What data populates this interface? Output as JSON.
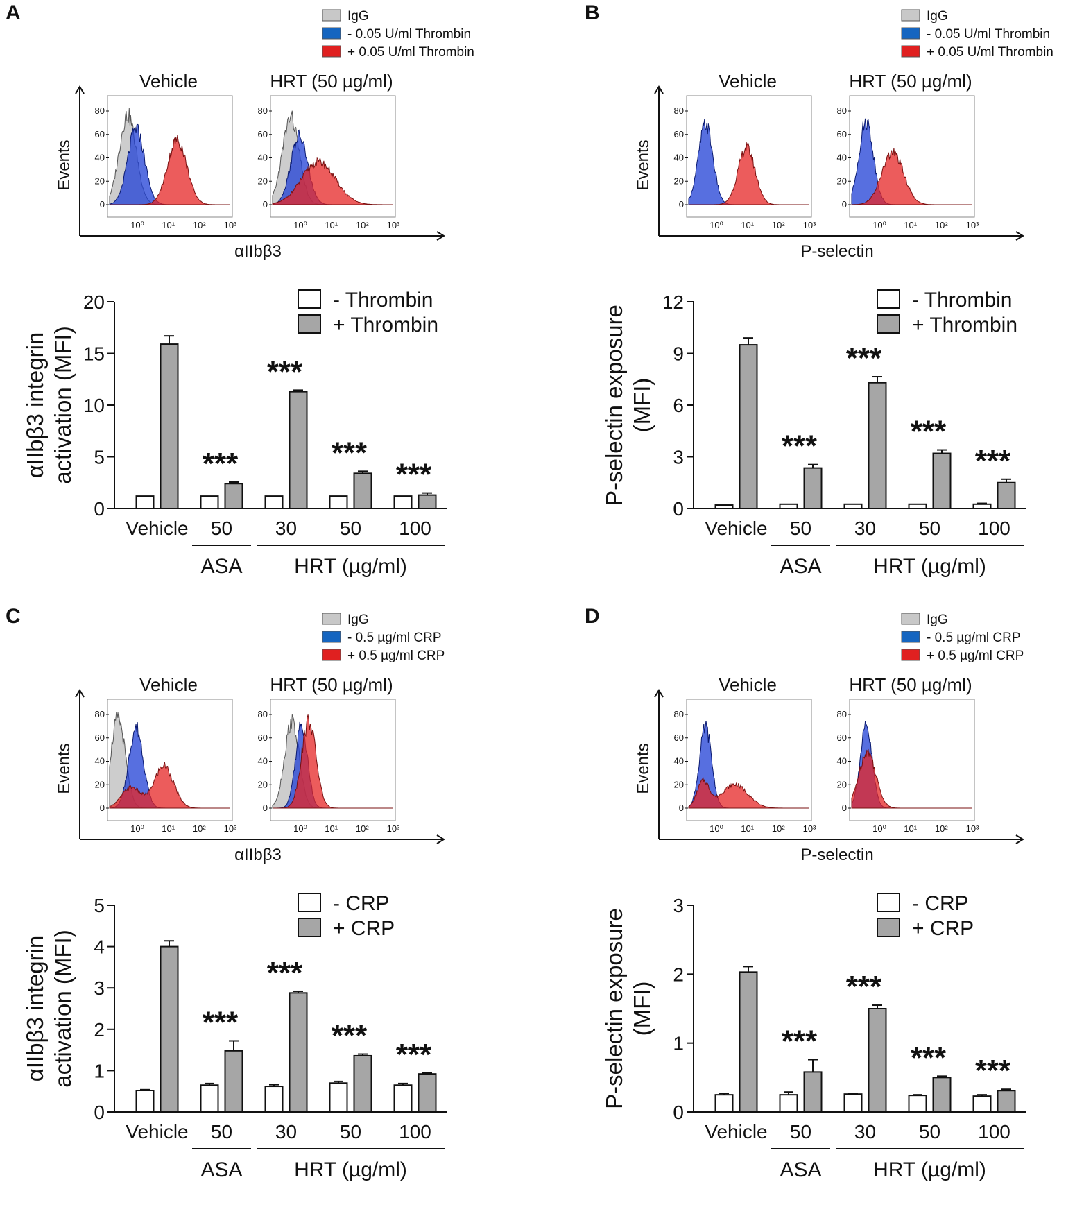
{
  "panels": [
    {
      "letter": "A",
      "histogram": {
        "legend": [
          {
            "label": "IgG",
            "color": "#c8c8c8"
          },
          {
            "label": "- 0.05 U/ml Thrombin",
            "color": "#1565c0"
          },
          {
            "label": "+ 0.05 U/ml Thrombin",
            "color": "#e02020"
          }
        ],
        "plots": [
          {
            "title": "Vehicle",
            "y_ticks": [
              "80",
              "60",
              "40",
              "20",
              "0"
            ],
            "x_ticks": [
              "10⁰",
              "10¹",
              "10²",
              "10³"
            ],
            "peaks": [
              {
                "series": "IgG",
                "center": 0.15,
                "width": 0.07,
                "height": 0.95
              },
              {
                "series": "minus",
                "center": 0.22,
                "width": 0.07,
                "height": 0.8
              },
              {
                "series": "plus",
                "center": 0.56,
                "width": 0.08,
                "height": 0.68
              }
            ]
          },
          {
            "title": "HRT (50 µg/ml)",
            "y_ticks": [
              "80",
              "60",
              "40",
              "20",
              "0"
            ],
            "x_ticks": [
              "10⁰",
              "10¹",
              "10²",
              "10³"
            ],
            "peaks": [
              {
                "series": "IgG",
                "center": 0.15,
                "width": 0.07,
                "height": 0.92
              },
              {
                "series": "minus",
                "center": 0.22,
                "width": 0.07,
                "height": 0.72
              },
              {
                "series": "plus",
                "center": 0.38,
                "width": 0.14,
                "height": 0.45
              }
            ]
          }
        ],
        "y_label": "Events",
        "x_label": "αIIbβ3"
      },
      "bar_chart": {
        "type": "bar",
        "y_label_lines": [
          "αIIbβ3 integrin",
          "activation (MFI)"
        ],
        "ylim": [
          0,
          20
        ],
        "y_ticks": [
          0,
          5,
          10,
          15,
          20
        ],
        "categories": [
          "Vehicle",
          "50",
          "30",
          "50",
          "100"
        ],
        "series": [
          {
            "name": "- Thrombin",
            "values": [
              1.2,
              1.2,
              1.2,
              1.2,
              1.2
            ],
            "errors": [
              0,
              0,
              0,
              0,
              0
            ]
          },
          {
            "name": "+ Thrombin",
            "values": [
              15.9,
              2.4,
              11.3,
              3.4,
              1.3
            ],
            "errors": [
              0.8,
              0.15,
              0.15,
              0.2,
              0.2
            ]
          }
        ],
        "significance": [
          "",
          "***",
          "***",
          "***",
          "***"
        ],
        "groups": [
          {
            "label": "ASA",
            "start": 1,
            "end": 1
          },
          {
            "label": "HRT (µg/ml)",
            "start": 2,
            "end": 4
          }
        ]
      }
    },
    {
      "letter": "B",
      "histogram": {
        "legend": [
          {
            "label": "IgG",
            "color": "#c8c8c8"
          },
          {
            "label": "- 0.05 U/ml Thrombin",
            "color": "#1565c0"
          },
          {
            "label": "+ 0.05 U/ml Thrombin",
            "color": "#e02020"
          }
        ],
        "plots": [
          {
            "title": "Vehicle",
            "y_ticks": [
              "80",
              "60",
              "40",
              "20",
              "0"
            ],
            "x_ticks": [
              "10⁰",
              "10¹",
              "10²",
              "10³"
            ],
            "peaks": [
              {
                "series": "minus",
                "center": 0.14,
                "width": 0.06,
                "height": 0.85
              },
              {
                "series": "plus",
                "center": 0.48,
                "width": 0.07,
                "height": 0.6
              }
            ]
          },
          {
            "title": "HRT (50 µg/ml)",
            "y_ticks": [
              "80",
              "60",
              "40",
              "20",
              "0"
            ],
            "x_ticks": [
              "10⁰",
              "10¹",
              "10²",
              "10³"
            ],
            "peaks": [
              {
                "series": "minus",
                "center": 0.12,
                "width": 0.06,
                "height": 0.88
              },
              {
                "series": "plus",
                "center": 0.34,
                "width": 0.09,
                "height": 0.55
              }
            ]
          }
        ],
        "y_label": "Events",
        "x_label": "P-selectin"
      },
      "bar_chart": {
        "type": "bar",
        "y_label_lines": [
          "P-selectin exposure",
          "(MFI)"
        ],
        "ylim": [
          0,
          12
        ],
        "y_ticks": [
          0,
          3,
          6,
          9,
          12
        ],
        "categories": [
          "Vehicle",
          "50",
          "30",
          "50",
          "100"
        ],
        "series": [
          {
            "name": "- Thrombin",
            "values": [
              0.2,
              0.25,
              0.25,
              0.25,
              0.25
            ],
            "errors": [
              0,
              0,
              0,
              0,
              0.05
            ]
          },
          {
            "name": "+ Thrombin",
            "values": [
              9.5,
              2.35,
              7.3,
              3.2,
              1.5
            ],
            "errors": [
              0.4,
              0.2,
              0.35,
              0.2,
              0.2
            ]
          }
        ],
        "significance": [
          "",
          "***",
          "***",
          "***",
          "***"
        ],
        "groups": [
          {
            "label": "ASA",
            "start": 1,
            "end": 1
          },
          {
            "label": "HRT (µg/ml)",
            "start": 2,
            "end": 4
          }
        ]
      }
    },
    {
      "letter": "C",
      "histogram": {
        "legend": [
          {
            "label": "IgG",
            "color": "#c8c8c8"
          },
          {
            "label": "- 0.5 µg/ml CRP",
            "color": "#1565c0"
          },
          {
            "label": "+ 0.5 µg/ml CRP",
            "color": "#e02020"
          }
        ],
        "plots": [
          {
            "title": "Vehicle",
            "y_ticks": [
              "80",
              "60",
              "40",
              "20",
              "0"
            ],
            "x_ticks": [
              "10⁰",
              "10¹",
              "10²",
              "10³"
            ],
            "peaks": [
              {
                "series": "IgG",
                "center": 0.07,
                "width": 0.06,
                "height": 0.95
              },
              {
                "series": "minus",
                "center": 0.22,
                "width": 0.06,
                "height": 0.85
              },
              {
                "series": "plus",
                "center": 0.45,
                "width": 0.08,
                "height": 0.45
              },
              {
                "series": "plus",
                "center": 0.18,
                "width": 0.08,
                "height": 0.22
              }
            ]
          },
          {
            "title": "HRT (50 µg/ml)",
            "y_ticks": [
              "80",
              "60",
              "40",
              "20",
              "0"
            ],
            "x_ticks": [
              "10⁰",
              "10¹",
              "10²",
              "10³"
            ],
            "peaks": [
              {
                "series": "IgG",
                "center": 0.16,
                "width": 0.06,
                "height": 0.92
              },
              {
                "series": "minus",
                "center": 0.24,
                "width": 0.05,
                "height": 0.88
              },
              {
                "series": "plus",
                "center": 0.3,
                "width": 0.06,
                "height": 0.92
              }
            ]
          }
        ],
        "y_label": "Events",
        "x_label": "αIIbβ3"
      },
      "bar_chart": {
        "type": "bar",
        "y_label_lines": [
          "αIIbβ3 integrin",
          "activation (MFI)"
        ],
        "ylim": [
          0,
          5
        ],
        "y_ticks": [
          0,
          1,
          2,
          3,
          4,
          5
        ],
        "categories": [
          "Vehicle",
          "50",
          "30",
          "50",
          "100"
        ],
        "series": [
          {
            "name": "- CRP",
            "values": [
              0.52,
              0.65,
              0.62,
              0.7,
              0.65
            ],
            "errors": [
              0.02,
              0.04,
              0.04,
              0.04,
              0.04
            ]
          },
          {
            "name": "+ CRP",
            "values": [
              4.0,
              1.48,
              2.88,
              1.36,
              0.92
            ],
            "errors": [
              0.14,
              0.24,
              0.04,
              0.04,
              0.02
            ]
          }
        ],
        "significance": [
          "",
          "***",
          "***",
          "***",
          "***"
        ],
        "groups": [
          {
            "label": "ASA",
            "start": 1,
            "end": 1
          },
          {
            "label": "HRT (µg/ml)",
            "start": 2,
            "end": 4
          }
        ]
      }
    },
    {
      "letter": "D",
      "histogram": {
        "legend": [
          {
            "label": "IgG",
            "color": "#c8c8c8"
          },
          {
            "label": "- 0.5 µg/ml CRP",
            "color": "#1565c0"
          },
          {
            "label": "+ 0.5 µg/ml CRP",
            "color": "#e02020"
          }
        ],
        "plots": [
          {
            "title": "Vehicle",
            "y_ticks": [
              "80",
              "60",
              "40",
              "20",
              "0"
            ],
            "x_ticks": [
              "10⁰",
              "10¹",
              "10²",
              "10³"
            ],
            "peaks": [
              {
                "series": "minus",
                "center": 0.14,
                "width": 0.05,
                "height": 0.85
              },
              {
                "series": "plus",
                "center": 0.12,
                "width": 0.05,
                "height": 0.28
              },
              {
                "series": "plus",
                "center": 0.38,
                "width": 0.11,
                "height": 0.25
              }
            ]
          },
          {
            "title": "HRT (50 µg/ml)",
            "y_ticks": [
              "80",
              "60",
              "40",
              "20",
              "0"
            ],
            "x_ticks": [
              "10⁰",
              "10¹",
              "10²",
              "10³"
            ],
            "peaks": [
              {
                "series": "minus",
                "center": 0.12,
                "width": 0.05,
                "height": 0.85
              },
              {
                "series": "plus",
                "center": 0.13,
                "width": 0.07,
                "height": 0.6
              }
            ]
          }
        ],
        "y_label": "Events",
        "x_label": "P-selectin"
      },
      "bar_chart": {
        "type": "bar",
        "y_label_lines": [
          "P-selectin exposure",
          "(MFI)"
        ],
        "ylim": [
          0,
          3
        ],
        "y_ticks": [
          0,
          1,
          2,
          3
        ],
        "categories": [
          "Vehicle",
          "50",
          "30",
          "50",
          "100"
        ],
        "series": [
          {
            "name": "- CRP",
            "values": [
              0.25,
              0.25,
              0.26,
              0.24,
              0.23
            ],
            "errors": [
              0.02,
              0.04,
              0.01,
              0.01,
              0.02
            ]
          },
          {
            "name": "+ CRP",
            "values": [
              2.03,
              0.58,
              1.5,
              0.5,
              0.31
            ],
            "errors": [
              0.08,
              0.18,
              0.05,
              0.02,
              0.02
            ]
          }
        ],
        "significance": [
          "",
          "***",
          "***",
          "***",
          "***"
        ],
        "groups": [
          {
            "label": "ASA",
            "start": 1,
            "end": 1
          },
          {
            "label": "HRT (µg/ml)",
            "start": 2,
            "end": 4
          }
        ]
      }
    }
  ],
  "chart_data": [
    {
      "type": "bar",
      "panel": "A",
      "title": "",
      "ylabel": "αIIbβ3 integrin activation (MFI)",
      "xlabel": "",
      "ylim": [
        0,
        20
      ],
      "categories": [
        "Vehicle",
        "50",
        "30",
        "50",
        "100"
      ],
      "series": [
        {
          "name": "- Thrombin",
          "values": [
            1.2,
            1.2,
            1.2,
            1.2,
            1.2
          ]
        },
        {
          "name": "+ Thrombin",
          "values": [
            15.9,
            2.4,
            11.3,
            3.4,
            1.3
          ]
        }
      ]
    },
    {
      "type": "bar",
      "panel": "B",
      "title": "",
      "ylabel": "P-selectin exposure (MFI)",
      "xlabel": "",
      "ylim": [
        0,
        12
      ],
      "categories": [
        "Vehicle",
        "50",
        "30",
        "50",
        "100"
      ],
      "series": [
        {
          "name": "- Thrombin",
          "values": [
            0.2,
            0.25,
            0.25,
            0.25,
            0.25
          ]
        },
        {
          "name": "+ Thrombin",
          "values": [
            9.5,
            2.35,
            7.3,
            3.2,
            1.5
          ]
        }
      ]
    },
    {
      "type": "bar",
      "panel": "C",
      "title": "",
      "ylabel": "αIIbβ3 integrin activation (MFI)",
      "xlabel": "",
      "ylim": [
        0,
        5
      ],
      "categories": [
        "Vehicle",
        "50",
        "30",
        "50",
        "100"
      ],
      "series": [
        {
          "name": "- CRP",
          "values": [
            0.52,
            0.65,
            0.62,
            0.7,
            0.65
          ]
        },
        {
          "name": "+ CRP",
          "values": [
            4.0,
            1.48,
            2.88,
            1.36,
            0.92
          ]
        }
      ]
    },
    {
      "type": "bar",
      "panel": "D",
      "title": "",
      "ylabel": "P-selectin exposure (MFI)",
      "xlabel": "",
      "ylim": [
        0,
        3
      ],
      "categories": [
        "Vehicle",
        "50",
        "30",
        "50",
        "100"
      ],
      "series": [
        {
          "name": "- CRP",
          "values": [
            0.25,
            0.25,
            0.26,
            0.24,
            0.23
          ]
        },
        {
          "name": "+ CRP",
          "values": [
            2.03,
            0.58,
            1.5,
            0.5,
            0.31
          ]
        }
      ]
    }
  ],
  "colors": {
    "igg": "#c8c8c8",
    "minus": "#1f3fd6",
    "plus": "#e52525",
    "bar_open": "#ffffff",
    "bar_filled": "#a6a6a6",
    "axis": "#111111"
  }
}
